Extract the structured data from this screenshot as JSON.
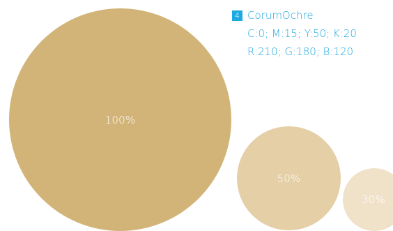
{
  "color": {
    "index": "4",
    "name": "CorumOchre",
    "cmyk": "C:0; M:15; Y:50; K:20",
    "rgb": "R:210; G:180; B:120",
    "hex": "#d2b478",
    "accent": "#1fa9e1"
  },
  "tints": [
    {
      "label": "100%",
      "hex": "#d2b478"
    },
    {
      "label": "50%",
      "hex": "#e5cfa7"
    },
    {
      "label": "30%",
      "hex": "#f0e2c9"
    }
  ]
}
